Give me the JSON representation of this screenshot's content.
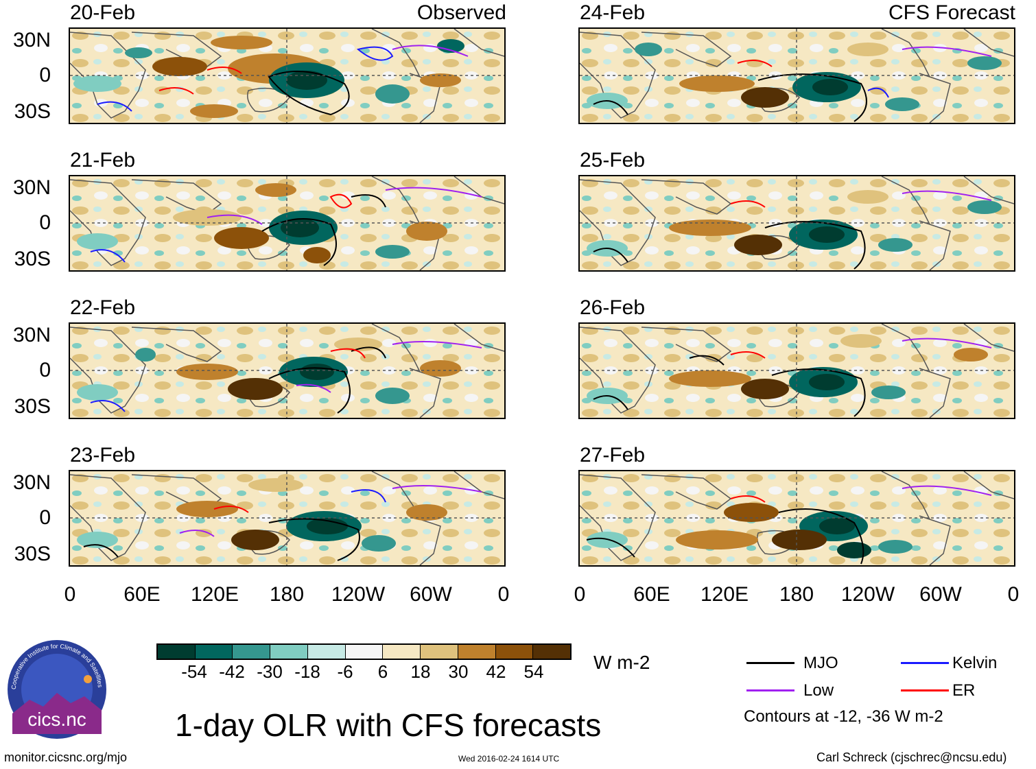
{
  "header": {
    "observed_tag": "Observed",
    "forecast_tag": "CFS Forecast"
  },
  "panels": [
    {
      "date": "20-Feb",
      "group": "observed"
    },
    {
      "date": "21-Feb",
      "group": "observed"
    },
    {
      "date": "22-Feb",
      "group": "observed"
    },
    {
      "date": "23-Feb",
      "group": "observed"
    },
    {
      "date": "24-Feb",
      "group": "forecast"
    },
    {
      "date": "25-Feb",
      "group": "forecast"
    },
    {
      "date": "26-Feb",
      "group": "forecast"
    },
    {
      "date": "27-Feb",
      "group": "forecast"
    }
  ],
  "latitude_labels": [
    "30N",
    "0",
    "30S"
  ],
  "longitude_labels": [
    "0",
    "60E",
    "120E",
    "180",
    "120W",
    "60W",
    "0"
  ],
  "colorbar": {
    "units": "W m-2",
    "labels": [
      "-54",
      "-42",
      "-30",
      "-18",
      "-6",
      "6",
      "18",
      "30",
      "42",
      "54"
    ],
    "colors": [
      "#003c30",
      "#01665e",
      "#35978f",
      "#80cdc1",
      "#c7eae5",
      "#f5f5f5",
      "#f6e8c3",
      "#dfc27d",
      "#bf812d",
      "#8c510a",
      "#543005"
    ]
  },
  "legend": {
    "items": [
      {
        "label": "MJO",
        "color": "#000000"
      },
      {
        "label": "Kelvin",
        "color": "#1a1aff"
      },
      {
        "label": "Low",
        "color": "#a020f0"
      },
      {
        "label": "ER",
        "color": "#ff0000"
      }
    ],
    "contours_note": "Contours at -12, -36 W m-2"
  },
  "title": "1-day OLR with CFS forecasts",
  "logo_text": "cics.nc",
  "logo_ring_text": "Cooperative Institute for Climate and Satellites",
  "footer": {
    "left": "monitor.cicsnc.org/mjo",
    "center": "Wed 2016-02-24 1614 UTC",
    "right": "Carl Schreck (cjschrec@ncsu.edu)"
  }
}
